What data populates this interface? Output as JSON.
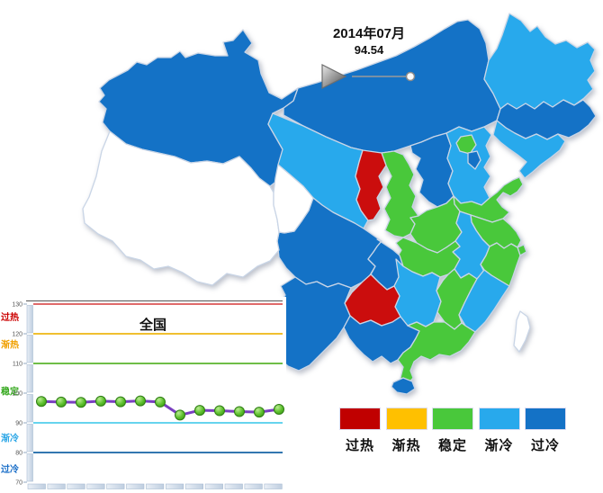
{
  "header": {
    "date": "2014年07月",
    "value": "94.54"
  },
  "legend": {
    "items": [
      {
        "label": "过热",
        "color": "#C00000"
      },
      {
        "label": "渐热",
        "color": "#FFC000"
      },
      {
        "label": "稳定",
        "color": "#49C83B"
      },
      {
        "label": "渐冷",
        "color": "#28A9EC"
      },
      {
        "label": "过冷",
        "color": "#1472C6"
      }
    ]
  },
  "map": {
    "border_color": "#C9D5E6",
    "provinces": {
      "xinjiang": {
        "color": "#1472C6"
      },
      "tibet": {
        "color": "#FFFFFF"
      },
      "qinghai": {
        "color": "#FFFFFF"
      },
      "gansu": {
        "color": "#28A9EC"
      },
      "ningxia": {
        "color": "#CB0D0D"
      },
      "inner_mongolia": {
        "color": "#1472C6"
      },
      "heilongjiang": {
        "color": "#28A9EC"
      },
      "jilin": {
        "color": "#1472C6"
      },
      "liaoning": {
        "color": "#28A9EC"
      },
      "hebei": {
        "color": "#28A9EC"
      },
      "beijing": {
        "color": "#49C83B"
      },
      "tianjin": {
        "color": "#1472C6"
      },
      "shanxi": {
        "color": "#1472C6"
      },
      "shaanxi": {
        "color": "#49C83B"
      },
      "shandong": {
        "color": "#49C83B"
      },
      "henan": {
        "color": "#49C83B"
      },
      "jiangsu": {
        "color": "#49C83B"
      },
      "anhui": {
        "color": "#28A9EC"
      },
      "shanghai": {
        "color": "#49C83B"
      },
      "hubei": {
        "color": "#49C83B"
      },
      "zhejiang": {
        "color": "#49C83B"
      },
      "fujian": {
        "color": "#28A9EC"
      },
      "jiangxi": {
        "color": "#49C83B"
      },
      "hunan": {
        "color": "#28A9EC"
      },
      "sichuan": {
        "color": "#1472C6"
      },
      "chongqing": {
        "color": "#1472C6"
      },
      "guizhou": {
        "color": "#CB0D0D"
      },
      "yunnan": {
        "color": "#1472C6"
      },
      "guangxi": {
        "color": "#1472C6"
      },
      "guangdong": {
        "color": "#49C83B"
      },
      "hainan": {
        "color": "#1472C6"
      },
      "taiwan": {
        "color": "#FFFFFF"
      }
    }
  },
  "chart_data": {
    "type": "line",
    "title": "全国",
    "xlabel": "",
    "ylabel": "",
    "x_labels": [],
    "y_ticks": [
      130,
      120,
      110,
      100,
      90,
      80,
      70
    ],
    "ylim": [
      68,
      131
    ],
    "grid": false,
    "legend_position": "left-zone-labels",
    "levels": [
      {
        "value": 130,
        "line_color": "#E06A6A",
        "label": "过热",
        "label_color": "#CC0000",
        "label_y_value": 125.8
      },
      {
        "value": 120,
        "line_color": "#F0C030",
        "label": "渐热",
        "label_color": "#F0A000",
        "label_y_value": 116.5
      },
      {
        "value": 110,
        "line_color": "#6FBE47",
        "label": "稳定",
        "label_color": "#35A81E",
        "label_y_value": 100.8
      },
      {
        "value": 90,
        "line_color": "#66D4EE",
        "label": "渐冷",
        "label_color": "#2BA6E6",
        "label_y_value": 85.0
      },
      {
        "value": 80,
        "line_color": "#3377B0",
        "label": "过冷",
        "label_color": "#1B6FC8",
        "label_y_value": 74.5
      }
    ],
    "series": [
      {
        "name": "全国",
        "values": [
          97.2,
          97.0,
          96.9,
          97.3,
          97.1,
          97.4,
          97.0,
          92.6,
          94.2,
          94.1,
          93.8,
          93.6,
          94.54
        ]
      }
    ],
    "series_color": "#7A3FC0",
    "marker_fill": "#5BBE2B"
  }
}
